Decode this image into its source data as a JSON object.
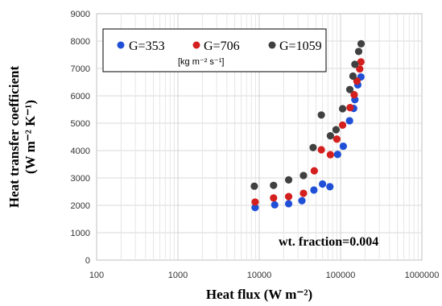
{
  "chart_data": {
    "type": "scatter",
    "x_scale": "log",
    "xlim": [
      100,
      1000000
    ],
    "ylim": [
      0,
      9000
    ],
    "x_ticks": [
      "100",
      "1000",
      "10000",
      "100000",
      "1000000"
    ],
    "y_ticks": [
      "0",
      "1000",
      "2000",
      "3000",
      "4000",
      "5000",
      "6000",
      "7000",
      "8000",
      "9000"
    ],
    "xlabel": "Heat flux (W m⁻²)",
    "ylabel_line1": "Heat transfer coefficient",
    "ylabel_line2": "(W m⁻² K⁻¹)",
    "legend_unit": "[kg m⁻² s⁻¹]",
    "legend_position": "top-left",
    "grid": true,
    "annotation": "wt. fraction=0.004",
    "series": [
      {
        "name": "G=353",
        "color": "#1f4fd6",
        "points": [
          [
            8900,
            1920
          ],
          [
            15500,
            2020
          ],
          [
            23000,
            2060
          ],
          [
            33500,
            2170
          ],
          [
            47000,
            2560
          ],
          [
            60000,
            2780
          ],
          [
            74000,
            2680
          ],
          [
            92000,
            3860
          ],
          [
            108000,
            4160
          ],
          [
            129000,
            5090
          ],
          [
            145000,
            5540
          ],
          [
            150000,
            5860
          ],
          [
            163000,
            6400
          ],
          [
            178000,
            6690
          ]
        ]
      },
      {
        "name": "G=706",
        "color": "#d41f1f",
        "points": [
          [
            8900,
            2120
          ],
          [
            15000,
            2270
          ],
          [
            23000,
            2320
          ],
          [
            35000,
            2440
          ],
          [
            47500,
            3260
          ],
          [
            58000,
            4030
          ],
          [
            75000,
            3850
          ],
          [
            90000,
            4420
          ],
          [
            106000,
            4930
          ],
          [
            131000,
            5570
          ],
          [
            147000,
            6040
          ],
          [
            159000,
            6540
          ],
          [
            172000,
            6980
          ],
          [
            178000,
            7240
          ]
        ]
      },
      {
        "name": "G=1059",
        "color": "#404040",
        "points": [
          [
            8700,
            2700
          ],
          [
            15000,
            2730
          ],
          [
            23000,
            2930
          ],
          [
            35000,
            3090
          ],
          [
            46000,
            4110
          ],
          [
            58000,
            5300
          ],
          [
            75000,
            4540
          ],
          [
            88000,
            4760
          ],
          [
            106000,
            5530
          ],
          [
            130000,
            6230
          ],
          [
            142000,
            6720
          ],
          [
            150000,
            7150
          ],
          [
            167000,
            7620
          ],
          [
            179000,
            7900
          ]
        ]
      }
    ]
  }
}
